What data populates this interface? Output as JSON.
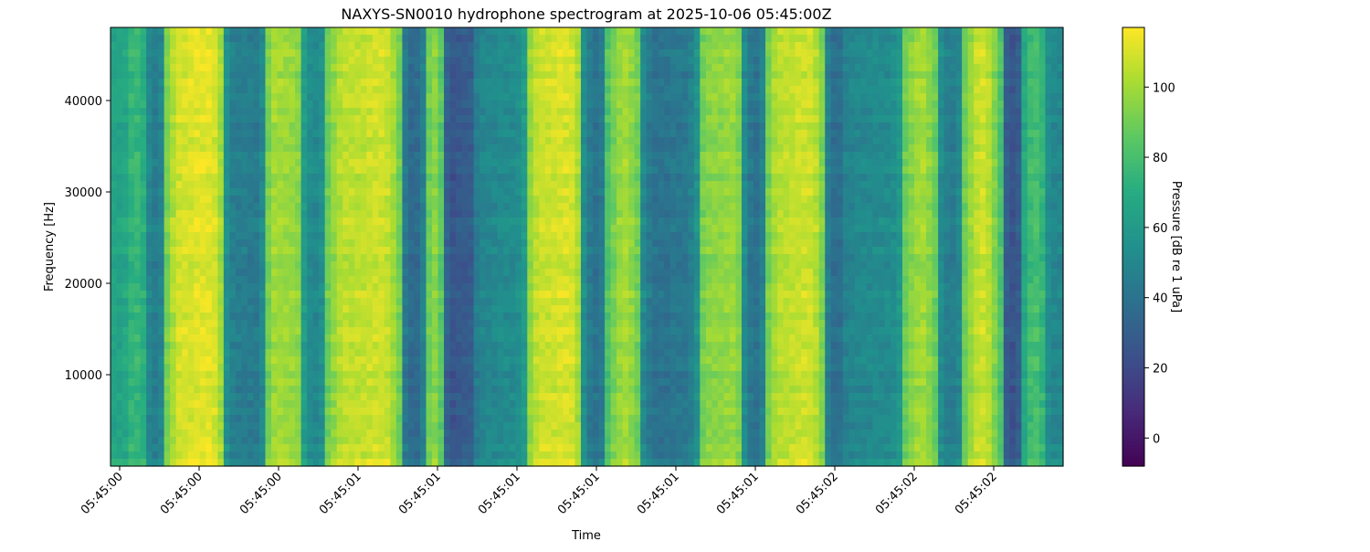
{
  "chart_data": {
    "type": "heatmap",
    "title": "NAXYS-SN0010 hydrophone spectrogram at 2025-10-06 05:45:00Z",
    "xlabel": "Time",
    "ylabel": "Frequency [Hz]",
    "x_tick_labels": [
      "05:45:00",
      "05:45:00",
      "05:45:00",
      "05:45:01",
      "05:45:01",
      "05:45:01",
      "05:45:01",
      "05:45:01",
      "05:45:01",
      "05:45:02",
      "05:45:02",
      "05:45:02"
    ],
    "ylim": [
      0,
      48000
    ],
    "y_ticks": [
      10000,
      20000,
      30000,
      40000
    ],
    "colorbar": {
      "label": "Pressure [dB re 1 uPa]",
      "colormap": "viridis",
      "range": [
        -8,
        117
      ],
      "ticks": [
        0,
        20,
        40,
        60,
        80,
        100
      ]
    },
    "time_segments_db": [
      65,
      75,
      45,
      110,
      112,
      45,
      44,
      100,
      98,
      50,
      105,
      108,
      35,
      95,
      25,
      28,
      50,
      52,
      108,
      110,
      40,
      100,
      40,
      42,
      95,
      98,
      40,
      105,
      108,
      38,
      50,
      52,
      100,
      45,
      108,
      25,
      80,
      50
    ],
    "time_segment_fractions": [
      0.018,
      0.019,
      0.021,
      0.031,
      0.031,
      0.022,
      0.021,
      0.019,
      0.019,
      0.024,
      0.041,
      0.041,
      0.022,
      0.021,
      0.014,
      0.015,
      0.029,
      0.029,
      0.029,
      0.029,
      0.024,
      0.038,
      0.029,
      0.029,
      0.024,
      0.024,
      0.022,
      0.032,
      0.032,
      0.019,
      0.031,
      0.031,
      0.038,
      0.024,
      0.041,
      0.023,
      0.022,
      0.019
    ]
  }
}
